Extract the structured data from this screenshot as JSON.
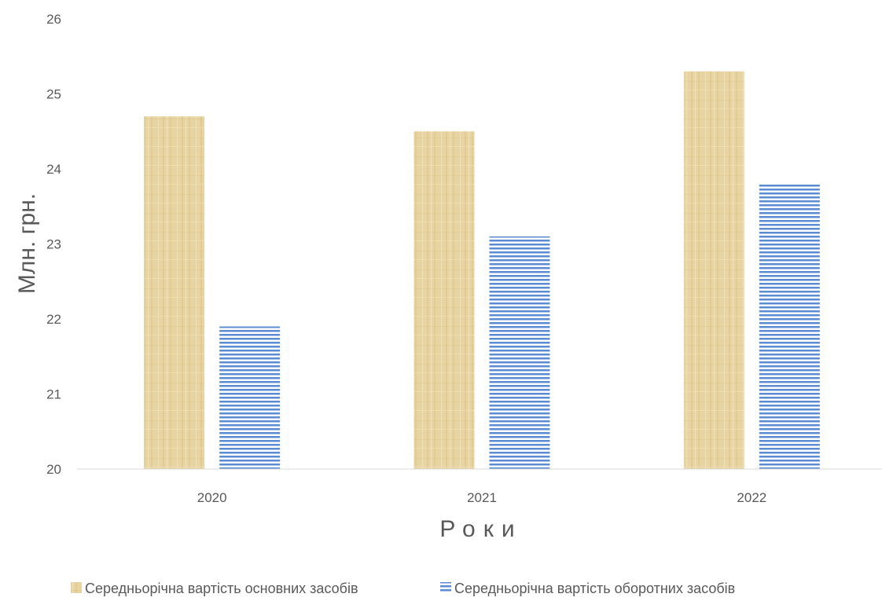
{
  "chart_data": {
    "type": "bar",
    "categories": [
      "2020",
      "2021",
      "2022"
    ],
    "series": [
      {
        "name": "Середньорічна вартість основних засобів",
        "values": [
          24.7,
          24.5,
          25.3
        ],
        "color": "#e8d4a2",
        "pattern": "papyrus-texture"
      },
      {
        "name": "Середньорічна вартість оборотних засобів",
        "values": [
          21.9,
          23.1,
          23.8
        ],
        "color": "#5b8bd0",
        "pattern": "horizontal-stripes"
      }
    ],
    "xlabel": "Роки",
    "ylabel": "Млн. грн.",
    "ylim": [
      20,
      26
    ],
    "yticks": [
      20,
      21,
      22,
      23,
      24,
      25,
      26
    ],
    "grid": false,
    "legend": "bottom"
  }
}
